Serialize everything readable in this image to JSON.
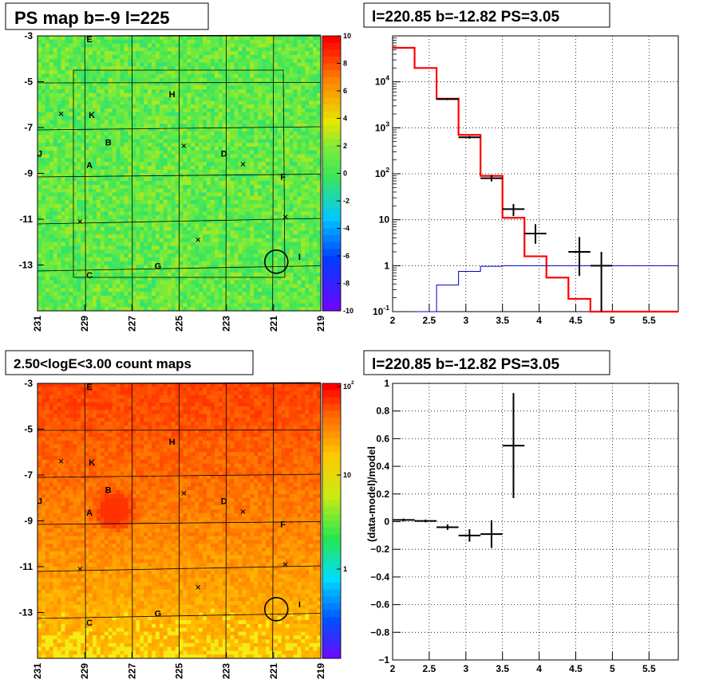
{
  "panels": {
    "ps_map": {
      "title": "PS map b=-9 l=225"
    },
    "spectrum": {
      "title": "l=220.85 b=-12.82 PS=3.05"
    },
    "count_map": {
      "title": "2.50<logE<3.00 count maps"
    },
    "residual": {
      "title": "l=220.85 b=-12.82 PS=3.05"
    }
  },
  "colors": {
    "data": "#000000",
    "model": "#ff0000",
    "background": "#0000cc",
    "grid": "#000000"
  },
  "chart_data": [
    {
      "type": "heatmap",
      "name": "ps_map",
      "title": "PS map b=-9 l=225",
      "x_ticks": [
        "231",
        "229",
        "227",
        "225",
        "223",
        "221",
        "219"
      ],
      "x_tick_values": [
        231,
        229,
        227,
        225,
        223,
        221,
        219
      ],
      "xlim": [
        231,
        219
      ],
      "y_ticks": [
        "-3",
        "-5",
        "-7",
        "-9",
        "-11",
        "-13"
      ],
      "y_tick_values": [
        -3,
        -5,
        -7,
        -9,
        -11,
        -13
      ],
      "ylim": [
        -3,
        -15
      ],
      "colorbar_ticks": [
        "10",
        "8",
        "6",
        "4",
        "2",
        "0",
        "-2",
        "-4",
        "-6",
        "-8",
        "-10"
      ],
      "colorbar_range": [
        -10,
        10
      ],
      "source_labels": [
        {
          "label": "E",
          "x": 228.8,
          "y": -3.1
        },
        {
          "label": "H",
          "x": 225.3,
          "y": -5.5
        },
        {
          "label": "K",
          "x": 228.7,
          "y": -6.4
        },
        {
          "label": "B",
          "x": 228.0,
          "y": -7.6
        },
        {
          "label": "J",
          "x": 230.9,
          "y": -8.1
        },
        {
          "label": "A",
          "x": 228.8,
          "y": -8.6
        },
        {
          "label": "D",
          "x": 223.1,
          "y": -8.1
        },
        {
          "label": "F",
          "x": 220.6,
          "y": -9.1
        },
        {
          "label": "I",
          "x": 219.9,
          "y": -12.6
        },
        {
          "label": "G",
          "x": 225.9,
          "y": -13.0
        },
        {
          "label": "C",
          "x": 228.8,
          "y": -13.4
        }
      ],
      "crosses": [
        {
          "x": 230.0,
          "y": -6.4
        },
        {
          "x": 224.8,
          "y": -7.8
        },
        {
          "x": 222.3,
          "y": -8.6
        },
        {
          "x": 229.2,
          "y": -11.1
        },
        {
          "x": 220.5,
          "y": -10.9
        },
        {
          "x": 224.2,
          "y": -11.9
        }
      ],
      "circle": {
        "x": 220.85,
        "y": -12.82,
        "radius": 0.5
      }
    },
    {
      "type": "line",
      "name": "spectrum",
      "title": "l=220.85 b=-12.82 PS=3.05",
      "x_ticks": [
        "2",
        "2.5",
        "3",
        "3.5",
        "4",
        "4.5",
        "5",
        "5.5"
      ],
      "x_tick_values": [
        2,
        2.5,
        3,
        3.5,
        4,
        4.5,
        5,
        5.5
      ],
      "xlim": [
        2,
        5.9
      ],
      "y_scale": "log",
      "ylim": [
        0.1,
        100000
      ],
      "y_tick_labels": [
        "10^-1",
        "1",
        "10",
        "10^2",
        "10^3",
        "10^4"
      ],
      "y_tick_values": [
        0.1,
        1,
        10,
        100,
        1000,
        10000
      ],
      "grid": true,
      "series": [
        {
          "role": "model",
          "color": "#ff0000",
          "bins": [
            [
              2.0,
              2.3,
              55000
            ],
            [
              2.3,
              2.6,
              20000
            ],
            [
              2.6,
              2.9,
              4300
            ],
            [
              2.9,
              3.2,
              700
            ],
            [
              3.2,
              3.5,
              90
            ],
            [
              3.5,
              3.8,
              11
            ],
            [
              3.8,
              4.1,
              1.6
            ],
            [
              4.1,
              4.4,
              0.55
            ],
            [
              4.4,
              4.7,
              0.19
            ],
            [
              4.7,
              5.0,
              0.1
            ],
            [
              5.0,
              5.9,
              0.1
            ]
          ]
        },
        {
          "role": "background",
          "color": "#0000cc",
          "bins": [
            [
              2.3,
              2.6,
              0.1
            ],
            [
              2.6,
              2.9,
              0.38
            ],
            [
              2.9,
              3.2,
              0.75
            ],
            [
              3.2,
              3.5,
              0.97
            ],
            [
              3.5,
              3.8,
              1.0
            ],
            [
              3.8,
              5.9,
              1.0
            ]
          ]
        },
        {
          "role": "data",
          "color": "#000000",
          "points": [
            {
              "x": 2.75,
              "y": 4200,
              "xerr": 0.15,
              "ylo": 4000,
              "yhi": 4400
            },
            {
              "x": 3.05,
              "y": 620,
              "xerr": 0.15,
              "ylo": 580,
              "yhi": 660
            },
            {
              "x": 3.35,
              "y": 80,
              "xerr": 0.15,
              "ylo": 68,
              "yhi": 94
            },
            {
              "x": 3.65,
              "y": 17,
              "xerr": 0.15,
              "ylo": 12,
              "yhi": 22
            },
            {
              "x": 3.95,
              "y": 5,
              "xerr": 0.15,
              "ylo": 3,
              "yhi": 8
            },
            {
              "x": 4.55,
              "y": 2,
              "xerr": 0.15,
              "ylo": 0.6,
              "yhi": 4.2
            },
            {
              "x": 4.85,
              "y": 1,
              "xerr": 0.15,
              "ylo": 0.1,
              "yhi": 2.0
            }
          ]
        }
      ]
    },
    {
      "type": "heatmap",
      "name": "count_map",
      "title": "2.50<logE<3.00 count maps",
      "x_ticks": [
        "231",
        "229",
        "227",
        "225",
        "223",
        "221",
        "219"
      ],
      "x_tick_values": [
        231,
        229,
        227,
        225,
        223,
        221,
        219
      ],
      "xlim": [
        231,
        219
      ],
      "y_ticks": [
        "-3",
        "-5",
        "-7",
        "-9",
        "-11",
        "-13"
      ],
      "y_tick_values": [
        -3,
        -5,
        -7,
        -9,
        -11,
        -13
      ],
      "ylim": [
        -3,
        -15
      ],
      "colorbar_ticks": [
        "10^2",
        "10",
        "1"
      ],
      "colorbar_scale": "log",
      "source_labels": [
        {
          "label": "E",
          "x": 228.8,
          "y": -3.1
        },
        {
          "label": "H",
          "x": 225.3,
          "y": -5.5
        },
        {
          "label": "K",
          "x": 228.7,
          "y": -6.4
        },
        {
          "label": "B",
          "x": 228.0,
          "y": -7.6
        },
        {
          "label": "J",
          "x": 230.9,
          "y": -8.1
        },
        {
          "label": "A",
          "x": 228.8,
          "y": -8.6
        },
        {
          "label": "D",
          "x": 223.1,
          "y": -8.1
        },
        {
          "label": "F",
          "x": 220.6,
          "y": -9.1
        },
        {
          "label": "I",
          "x": 219.9,
          "y": -12.6
        },
        {
          "label": "G",
          "x": 225.9,
          "y": -13.0
        },
        {
          "label": "C",
          "x": 228.8,
          "y": -13.4
        }
      ],
      "crosses": [
        {
          "x": 230.0,
          "y": -6.4
        },
        {
          "x": 224.8,
          "y": -7.8
        },
        {
          "x": 222.3,
          "y": -8.6
        },
        {
          "x": 229.2,
          "y": -11.1
        },
        {
          "x": 220.5,
          "y": -10.9
        },
        {
          "x": 224.2,
          "y": -11.9
        }
      ],
      "circle": {
        "x": 220.85,
        "y": -12.82,
        "radius": 0.5
      }
    },
    {
      "type": "scatter",
      "name": "residual",
      "title": "l=220.85 b=-12.82 PS=3.05",
      "ylabel": "(data-model)/model",
      "x_ticks": [
        "2",
        "2.5",
        "3",
        "3.5",
        "4",
        "4.5",
        "5",
        "5.5"
      ],
      "x_tick_values": [
        2,
        2.5,
        3,
        3.5,
        4,
        4.5,
        5,
        5.5
      ],
      "xlim": [
        2,
        5.9
      ],
      "ylim": [
        -1,
        1
      ],
      "y_ticks": [
        "1",
        "0.8",
        "0.6",
        "0.4",
        "0.2",
        "0",
        "−0.2",
        "−0.4",
        "−0.6",
        "−0.8",
        "−1"
      ],
      "y_tick_values": [
        1,
        0.8,
        0.6,
        0.4,
        0.2,
        0,
        -0.2,
        -0.4,
        -0.6,
        -0.8,
        -1
      ],
      "grid": true,
      "points": [
        {
          "x": 2.15,
          "y": 0.012,
          "xerr": 0.15,
          "yerr": 0.01
        },
        {
          "x": 2.45,
          "y": 0.005,
          "xerr": 0.15,
          "yerr": 0.01
        },
        {
          "x": 2.75,
          "y": -0.04,
          "xerr": 0.15,
          "yerr": 0.02
        },
        {
          "x": 3.05,
          "y": -0.1,
          "xerr": 0.15,
          "yerr": 0.045
        },
        {
          "x": 3.35,
          "y": -0.09,
          "xerr": 0.15,
          "yerr": 0.1
        },
        {
          "x": 3.65,
          "y": 0.55,
          "xerr": 0.15,
          "ylo": 0.17,
          "yhi": 0.93
        }
      ]
    }
  ]
}
